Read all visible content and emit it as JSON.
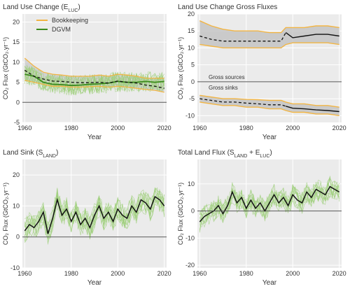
{
  "colors": {
    "panel_bg": "#ebebeb",
    "grid": "#ffffff",
    "bookkeeping": "#f2b544",
    "dgvm": "#3a8a1c",
    "dgvm_light": "#9fd07c",
    "mean_black": "#111111",
    "band_grey": "#bfbfbf",
    "zero_line": "#555555",
    "text": "#333333"
  },
  "chart_data": [
    {
      "type": "line",
      "title": "Land Use Change (E",
      "title_sub": "LUC",
      "title_end": ")",
      "xlabel": "Year",
      "ylabel": "CO₂ Flux (GtCO₂.yr⁻¹)",
      "xlim": [
        1959,
        2021
      ],
      "ylim": [
        -5,
        22
      ],
      "xticks": [
        1960,
        1980,
        2000,
        2020
      ],
      "yticks": [
        -5,
        0,
        5,
        10,
        15,
        20
      ],
      "grid": true,
      "legend": {
        "position": "top-left",
        "items": [
          "Bookkeeping",
          "DGVM"
        ]
      },
      "years": [
        1960,
        1964,
        1968,
        1972,
        1976,
        1980,
        1984,
        1988,
        1992,
        1996,
        2000,
        2004,
        2008,
        2012,
        2016,
        2020
      ],
      "series": [
        {
          "name": "Bookkeeping",
          "role": "range_low",
          "values": [
            5.5,
            5.0,
            4.5,
            4.0,
            4.0,
            3.8,
            3.8,
            3.9,
            4.0,
            3.8,
            4.0,
            3.8,
            3.5,
            3.2,
            3.0,
            2.5
          ]
        },
        {
          "name": "Bookkeeping",
          "role": "range_high",
          "values": [
            11.0,
            9.0,
            7.5,
            7.0,
            6.8,
            6.5,
            6.5,
            6.5,
            6.8,
            6.5,
            7.0,
            6.8,
            6.5,
            6.0,
            6.0,
            6.0
          ]
        },
        {
          "name": "Bookkeeping",
          "role": "mean",
          "values": [
            8.0,
            6.5,
            5.8,
            5.3,
            5.2,
            5.0,
            4.9,
            4.9,
            5.0,
            4.8,
            5.3,
            5.0,
            4.8,
            4.3,
            4.0,
            3.5
          ]
        },
        {
          "name": "DGVM",
          "role": "mean",
          "values": [
            7.0,
            6.5,
            5.0,
            4.5,
            4.4,
            4.2,
            4.3,
            4.5,
            4.6,
            4.8,
            5.2,
            5.0,
            5.0,
            5.2,
            5.0,
            5.2
          ]
        }
      ]
    },
    {
      "type": "line",
      "title": "Land Use Change Gross Fluxes",
      "xlabel": "Year",
      "ylabel": "CO₂ Flux (GtCO₂.yr⁻¹)",
      "xlim": [
        1959,
        2021
      ],
      "ylim": [
        -12,
        20
      ],
      "xticks": [
        1960,
        1980,
        2000,
        2020
      ],
      "yticks": [
        -10,
        -5,
        0,
        5,
        10,
        15,
        20
      ],
      "grid": true,
      "annotations": [
        "Gross sources",
        "Gross sinks"
      ],
      "years": [
        1960,
        1965,
        1970,
        1975,
        1980,
        1985,
        1990,
        1995,
        1997,
        2000,
        2005,
        2010,
        2015,
        2020
      ],
      "sources": {
        "low": [
          11.0,
          10.5,
          10.0,
          10.0,
          10.0,
          10.0,
          10.0,
          10.0,
          11.0,
          11.5,
          11.5,
          11.5,
          11.5,
          11.0
        ],
        "high": [
          18.0,
          16.5,
          15.5,
          15.0,
          15.0,
          15.0,
          14.5,
          14.5,
          16.0,
          16.0,
          16.0,
          16.5,
          16.5,
          16.0
        ],
        "mean": [
          13.5,
          12.5,
          12.0,
          12.0,
          12.0,
          12.0,
          12.0,
          12.0,
          14.5,
          13.0,
          13.5,
          14.0,
          14.0,
          13.5
        ]
      },
      "sinks": {
        "low": [
          -6.0,
          -6.5,
          -7.0,
          -7.0,
          -7.5,
          -7.5,
          -8.0,
          -8.0,
          -8.5,
          -9.0,
          -9.0,
          -9.5,
          -9.5,
          -10.0
        ],
        "high": [
          -4.0,
          -4.5,
          -5.0,
          -5.0,
          -5.2,
          -5.3,
          -5.5,
          -5.5,
          -6.0,
          -6.5,
          -6.5,
          -7.0,
          -7.0,
          -7.5
        ],
        "mean": [
          -5.0,
          -5.5,
          -6.0,
          -6.0,
          -6.3,
          -6.5,
          -6.8,
          -6.8,
          -7.2,
          -7.8,
          -8.0,
          -8.3,
          -8.5,
          -8.8
        ]
      }
    },
    {
      "type": "line",
      "title": "Land Sink (S",
      "title_sub": "LAND",
      "title_end": ")",
      "xlabel": "Year",
      "ylabel": "CO₂ Flux (GtCO₂.yr⁻¹)",
      "xlim": [
        1959,
        2021
      ],
      "ylim": [
        -10,
        25
      ],
      "xticks": [
        1960,
        1980,
        2000,
        2020
      ],
      "yticks": [
        -10,
        0,
        10,
        20
      ],
      "grid": true,
      "years": [
        1960,
        1962,
        1964,
        1966,
        1968,
        1970,
        1972,
        1974,
        1976,
        1978,
        1980,
        1982,
        1984,
        1986,
        1988,
        1990,
        1992,
        1994,
        1996,
        1998,
        2000,
        2002,
        2004,
        2006,
        2008,
        2010,
        2012,
        2014,
        2016,
        2018,
        2020
      ],
      "series": [
        {
          "name": "",
          "role": "mean",
          "values": [
            2.0,
            4.0,
            3.0,
            5.0,
            8.0,
            1.0,
            6.0,
            12.0,
            7.0,
            9.0,
            5.0,
            8.0,
            4.0,
            6.0,
            3.0,
            7.0,
            10.0,
            6.0,
            8.0,
            5.0,
            9.0,
            7.0,
            6.0,
            10.0,
            8.0,
            12.0,
            11.0,
            9.0,
            13.0,
            12.0,
            10.0
          ]
        }
      ]
    },
    {
      "type": "line",
      "title": "Total Land Flux (S",
      "title_sub": "LAND",
      "title_mid": " + E",
      "title_sub2": "LUC",
      "title_end": ")",
      "xlabel": "Year",
      "ylabel": "CO₂ Flux (GtCO₂.yr⁻¹)",
      "xlim": [
        1959,
        2021
      ],
      "ylim": [
        -21,
        19
      ],
      "xticks": [
        1960,
        1980,
        2000,
        2020
      ],
      "yticks": [
        -20,
        -10,
        0,
        10
      ],
      "grid": true,
      "years": [
        1960,
        1962,
        1964,
        1966,
        1968,
        1970,
        1972,
        1974,
        1976,
        1978,
        1980,
        1982,
        1984,
        1986,
        1988,
        1990,
        1992,
        1994,
        1996,
        1998,
        2000,
        2002,
        2004,
        2006,
        2008,
        2010,
        2012,
        2014,
        2016,
        2018,
        2020
      ],
      "series": [
        {
          "name": "",
          "role": "mean",
          "values": [
            -4.0,
            -2.0,
            -1.0,
            0.0,
            2.0,
            -1.0,
            2.0,
            7.0,
            3.0,
            5.0,
            1.0,
            4.0,
            1.0,
            3.0,
            0.0,
            3.0,
            6.0,
            3.0,
            5.0,
            2.0,
            6.0,
            4.0,
            3.0,
            7.0,
            5.0,
            8.0,
            7.0,
            6.0,
            9.0,
            8.0,
            7.0
          ]
        }
      ]
    }
  ]
}
